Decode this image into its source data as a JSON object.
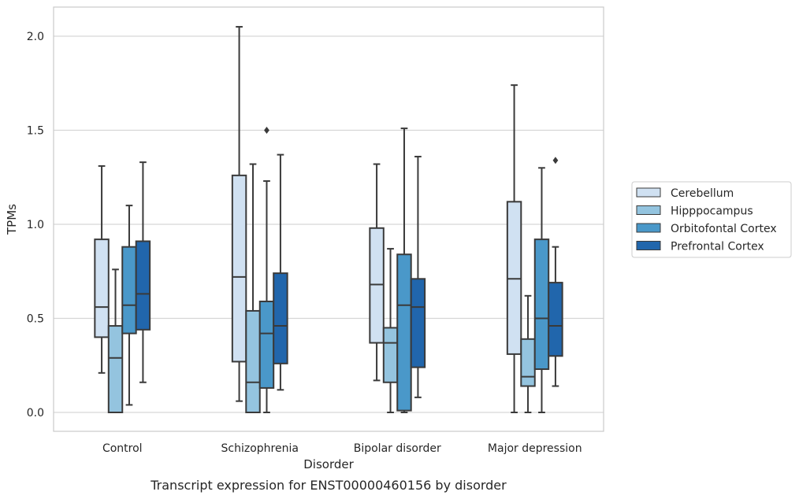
{
  "chart_data": {
    "type": "boxplot",
    "caption": "Transcript expression for ENST00000460156 by disorder",
    "xlabel": "Disorder",
    "ylabel": "TPMs",
    "ylim": [
      -0.1,
      2.15
    ],
    "yticks": [
      "0.0",
      "0.5",
      "1.0",
      "1.5",
      "2.0"
    ],
    "grid": true,
    "legend_position": "right",
    "categories": [
      "Control",
      "Schizophrenia",
      "Bipolar disorder",
      "Major depression"
    ],
    "series": [
      {
        "name": "Cerebellum",
        "color": "#d0e1f2",
        "boxes": [
          {
            "whisker_low": 0.21,
            "q1": 0.4,
            "median": 0.56,
            "q3": 0.92,
            "whisker_high": 1.31,
            "outliers": []
          },
          {
            "whisker_low": 0.06,
            "q1": 0.27,
            "median": 0.72,
            "q3": 1.26,
            "whisker_high": 2.05,
            "outliers": []
          },
          {
            "whisker_low": 0.17,
            "q1": 0.37,
            "median": 0.68,
            "q3": 0.98,
            "whisker_high": 1.32,
            "outliers": []
          },
          {
            "whisker_low": 0.0,
            "q1": 0.31,
            "median": 0.71,
            "q3": 1.12,
            "whisker_high": 1.74,
            "outliers": []
          }
        ]
      },
      {
        "name": "Hipppocampus",
        "color": "#94c4df",
        "boxes": [
          {
            "whisker_low": 0.0,
            "q1": 0.0,
            "median": 0.29,
            "q3": 0.46,
            "whisker_high": 0.76,
            "outliers": []
          },
          {
            "whisker_low": 0.0,
            "q1": 0.0,
            "median": 0.16,
            "q3": 0.54,
            "whisker_high": 1.32,
            "outliers": []
          },
          {
            "whisker_low": 0.0,
            "q1": 0.16,
            "median": 0.37,
            "q3": 0.45,
            "whisker_high": 0.87,
            "outliers": []
          },
          {
            "whisker_low": 0.0,
            "q1": 0.14,
            "median": 0.19,
            "q3": 0.39,
            "whisker_high": 0.62,
            "outliers": []
          }
        ]
      },
      {
        "name": "Orbitofontal Cortex",
        "color": "#4a98c9",
        "boxes": [
          {
            "whisker_low": 0.04,
            "q1": 0.42,
            "median": 0.57,
            "q3": 0.88,
            "whisker_high": 1.1,
            "outliers": []
          },
          {
            "whisker_low": 0.0,
            "q1": 0.13,
            "median": 0.42,
            "q3": 0.59,
            "whisker_high": 1.23,
            "outliers": [
              1.5
            ]
          },
          {
            "whisker_low": 0.0,
            "q1": 0.01,
            "median": 0.57,
            "q3": 0.84,
            "whisker_high": 1.51,
            "outliers": []
          },
          {
            "whisker_low": 0.0,
            "q1": 0.23,
            "median": 0.5,
            "q3": 0.92,
            "whisker_high": 1.3,
            "outliers": []
          }
        ]
      },
      {
        "name": "Prefrontal Cortex",
        "color": "#2166ac",
        "boxes": [
          {
            "whisker_low": 0.16,
            "q1": 0.44,
            "median": 0.63,
            "q3": 0.91,
            "whisker_high": 1.33,
            "outliers": []
          },
          {
            "whisker_low": 0.12,
            "q1": 0.26,
            "median": 0.46,
            "q3": 0.74,
            "whisker_high": 1.37,
            "outliers": []
          },
          {
            "whisker_low": 0.08,
            "q1": 0.24,
            "median": 0.56,
            "q3": 0.71,
            "whisker_high": 1.36,
            "outliers": []
          },
          {
            "whisker_low": 0.14,
            "q1": 0.3,
            "median": 0.46,
            "q3": 0.69,
            "whisker_high": 0.88,
            "outliers": [
              1.34
            ]
          }
        ]
      }
    ]
  }
}
